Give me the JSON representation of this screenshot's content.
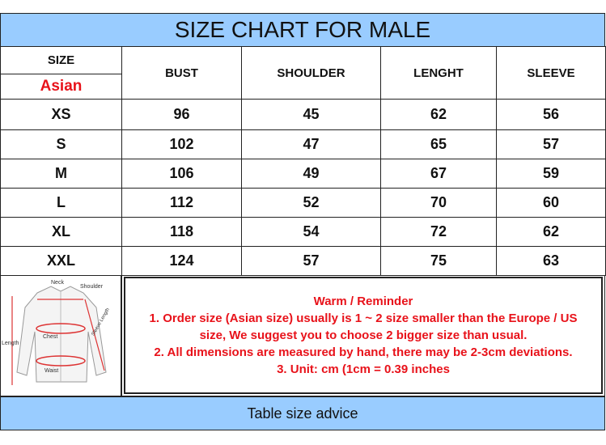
{
  "title": "SIZE CHART FOR MALE",
  "header": {
    "size": "SIZE",
    "region": "Asian",
    "columns": [
      "BUST",
      "SHOULDER",
      "LENGHT",
      "SLEEVE"
    ]
  },
  "rows": [
    {
      "size": "XS",
      "values": [
        "96",
        "45",
        "62",
        "56"
      ]
    },
    {
      "size": "S",
      "values": [
        "102",
        "47",
        "65",
        "57"
      ]
    },
    {
      "size": "M",
      "values": [
        "106",
        "49",
        "67",
        "59"
      ]
    },
    {
      "size": "L",
      "values": [
        "112",
        "52",
        "70",
        "60"
      ]
    },
    {
      "size": "XL",
      "values": [
        "118",
        "54",
        "72",
        "62"
      ]
    },
    {
      "size": "XXL",
      "values": [
        "124",
        "57",
        "75",
        "63"
      ]
    }
  ],
  "diagram": {
    "labels": {
      "neck": "Neck",
      "shoulder": "Shoulder",
      "chest": "Chest",
      "waist": "Waist",
      "length": "Length",
      "sleeve": "Sleeve Length"
    }
  },
  "reminder": {
    "heading": "Warm / Reminder",
    "lines": [
      "1.  Order size (Asian size) usually is 1 ~ 2 size smaller than the Europe / US",
      "size, We suggest you to choose 2 bigger size than usual.",
      "2.  All dimensions are measured by hand, there may be 2-3cm deviations.",
      "3.  Unit: cm (1cm = 0.39 inches"
    ]
  },
  "footer": "Table size advice",
  "colors": {
    "header_bg": "#99ccff",
    "accent_red": "#e8121a"
  }
}
